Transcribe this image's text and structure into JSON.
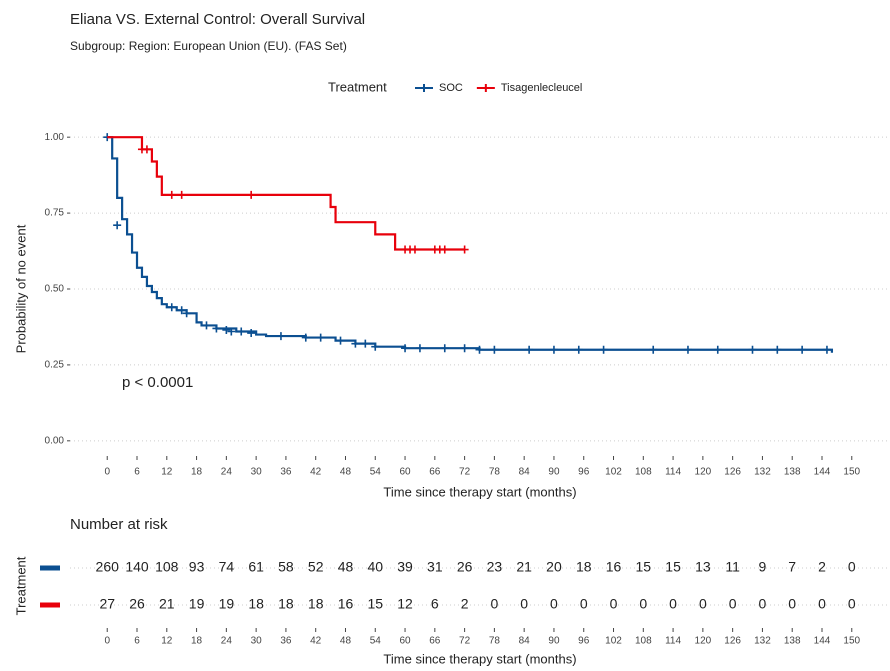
{
  "chart_data": {
    "type": "km",
    "title": "Eliana VS. External Control: Overall Survival",
    "subtitle": "Subgroup: Region: European Union (EU). (FAS Set)",
    "legend_title": "Treatment",
    "xlabel": "Time since therapy start (months)",
    "ylabel": "Probability of no event",
    "annotation": "p < 0.0001",
    "xlim": [
      -7.5,
      157.5
    ],
    "ylim": [
      -0.05,
      1.05
    ],
    "xticks": [
      0,
      6,
      12,
      18,
      24,
      30,
      36,
      42,
      48,
      54,
      60,
      66,
      72,
      78,
      84,
      90,
      96,
      102,
      108,
      114,
      120,
      126,
      132,
      138,
      144,
      150
    ],
    "yticks": [
      {
        "value": 0,
        "label": "0.00"
      },
      {
        "value": 0.25,
        "label": "0.25"
      },
      {
        "value": 0.5,
        "label": "0.50"
      },
      {
        "value": 0.75,
        "label": "0.75"
      },
      {
        "value": 1,
        "label": "1.00"
      }
    ],
    "grid": true,
    "series": [
      {
        "name": "SOC",
        "color": "#0b4f91",
        "time": [
          0,
          1,
          2,
          3,
          4,
          5,
          6,
          7,
          8,
          9,
          10,
          11,
          12,
          14,
          16,
          18,
          19,
          22,
          26,
          30,
          32,
          40,
          46,
          50,
          54,
          60,
          75,
          146
        ],
        "values": [
          1.0,
          0.93,
          0.8,
          0.73,
          0.68,
          0.62,
          0.57,
          0.54,
          0.51,
          0.49,
          0.47,
          0.45,
          0.44,
          0.43,
          0.42,
          0.39,
          0.38,
          0.37,
          0.36,
          0.35,
          0.345,
          0.34,
          0.33,
          0.32,
          0.31,
          0.305,
          0.3,
          0.29
        ],
        "censored": {
          "time": [
            0,
            2,
            13,
            15,
            16,
            20,
            22,
            24,
            25,
            27,
            29,
            35,
            40,
            43,
            47,
            50,
            52,
            54,
            60,
            63,
            68,
            72,
            75,
            78,
            85,
            90,
            95,
            100,
            110,
            117,
            123,
            130,
            135,
            140,
            145
          ],
          "values": [
            1.0,
            0.71,
            0.44,
            0.43,
            0.42,
            0.38,
            0.37,
            0.365,
            0.36,
            0.36,
            0.355,
            0.345,
            0.34,
            0.34,
            0.33,
            0.32,
            0.32,
            0.31,
            0.305,
            0.305,
            0.305,
            0.305,
            0.3,
            0.3,
            0.3,
            0.3,
            0.3,
            0.3,
            0.3,
            0.3,
            0.3,
            0.3,
            0.3,
            0.3,
            0.3
          ]
        }
      },
      {
        "name": "Tisagenlecleucel",
        "color": "#e8000b",
        "time": [
          0,
          7,
          9,
          10,
          11,
          45,
          46,
          54,
          58,
          72
        ],
        "values": [
          1.0,
          0.96,
          0.92,
          0.87,
          0.81,
          0.77,
          0.72,
          0.68,
          0.63,
          0.63
        ],
        "censored": {
          "time": [
            7,
            8,
            13,
            15,
            29,
            60,
            61,
            62,
            66,
            67,
            68,
            72
          ],
          "values": [
            0.96,
            0.96,
            0.81,
            0.81,
            0.81,
            0.63,
            0.63,
            0.63,
            0.63,
            0.63,
            0.63,
            0.63
          ]
        }
      }
    ],
    "risk_table": {
      "title": "Number at risk",
      "ylabel": "Treatment",
      "xlabel": "Time since therapy start (months)",
      "rows": [
        [
          260,
          140,
          108,
          93,
          74,
          61,
          58,
          52,
          48,
          40,
          39,
          31,
          26,
          23,
          21,
          20,
          18,
          16,
          15,
          15,
          13,
          11,
          9,
          7,
          2,
          0
        ],
        [
          27,
          26,
          21,
          19,
          19,
          18,
          18,
          18,
          16,
          15,
          12,
          6,
          2,
          0,
          0,
          0,
          0,
          0,
          0,
          0,
          0,
          0,
          0,
          0,
          0,
          0
        ]
      ]
    }
  }
}
